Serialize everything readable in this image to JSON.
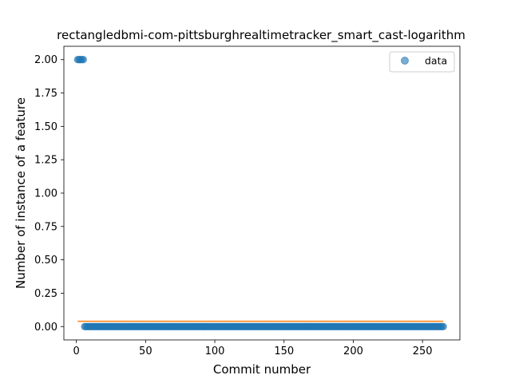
{
  "chart_data": {
    "type": "scatter",
    "title": "rectangledbmi-com-pittsburghrealtimetracker_smart_cast-logarithm",
    "xlabel": "Commit number",
    "ylabel": "Number of instance of a feature",
    "xlim": [
      -9,
      277
    ],
    "ylim": [
      -0.1,
      2.1
    ],
    "xticks": [
      0,
      50,
      100,
      150,
      200,
      250
    ],
    "yticks": [
      0.0,
      0.25,
      0.5,
      0.75,
      1.0,
      1.25,
      1.5,
      1.75,
      2.0
    ],
    "ytick_labels": [
      "0.00",
      "0.25",
      "0.50",
      "0.75",
      "1.00",
      "1.25",
      "1.50",
      "1.75",
      "2.00"
    ],
    "legend": {
      "position": "top-right",
      "entries": [
        "data"
      ]
    },
    "grid": false,
    "series": [
      {
        "name": "data",
        "kind": "scatter",
        "color": "#1f77b4",
        "segments": [
          {
            "x_start": 1,
            "x_end": 5,
            "y": 2.0
          },
          {
            "x_start": 6,
            "x_end": 265,
            "y": 0.0
          }
        ]
      },
      {
        "kind": "line",
        "color": "#ff7f0e",
        "x": [
          1,
          265
        ],
        "y": [
          0.04,
          0.04
        ]
      }
    ]
  }
}
